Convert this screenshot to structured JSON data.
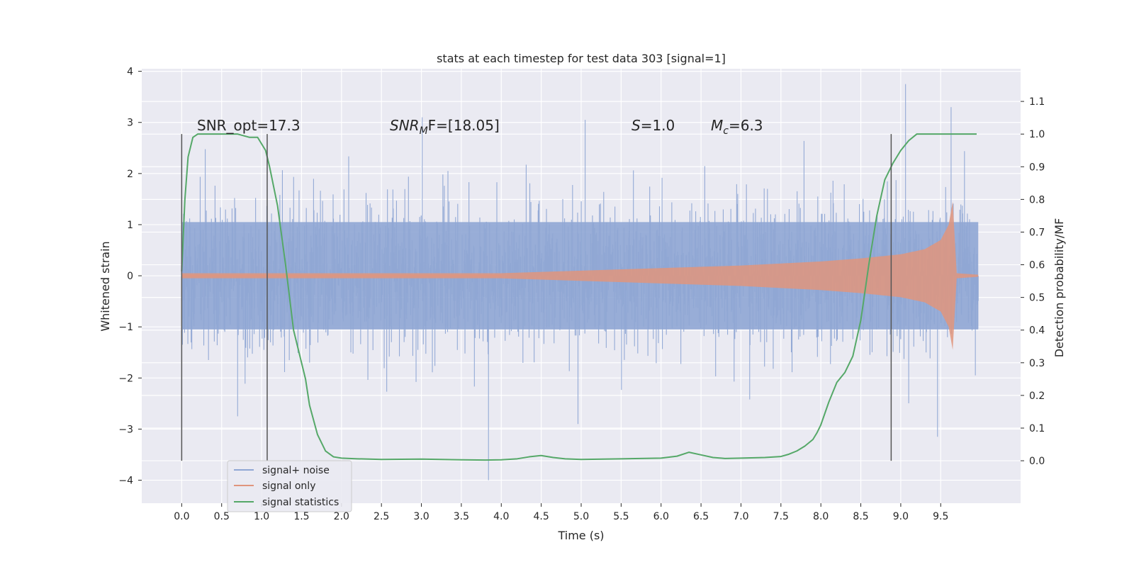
{
  "chart_data": {
    "type": "line",
    "title": "stats at each timestep for test data 303 [signal=1]",
    "xlabel": "Time (s)",
    "ylabel": "Whitened strain",
    "y2label": "Detection probability/MF",
    "xlim": [
      -0.5,
      10.5
    ],
    "ylim": [
      -4.45,
      4.05
    ],
    "y2lim": [
      -0.13,
      1.2
    ],
    "xticks": [
      "0.0",
      "0.5",
      "1.0",
      "1.5",
      "2.0",
      "2.5",
      "3.0",
      "3.5",
      "4.0",
      "4.5",
      "5.0",
      "5.5",
      "6.0",
      "6.5",
      "7.0",
      "7.5",
      "8.0",
      "8.5",
      "9.0",
      "9.5"
    ],
    "yticks": [
      "−4",
      "−3",
      "−2",
      "−1",
      "0",
      "1",
      "2",
      "3",
      "4"
    ],
    "y2ticks": [
      "0.0",
      "0.1",
      "0.2",
      "0.3",
      "0.4",
      "0.5",
      "0.6",
      "0.7",
      "0.8",
      "0.9",
      "1.0",
      "1.1"
    ],
    "grid": true,
    "legend_position": "lower-left",
    "annotations": {
      "snr_opt": "SNR_opt=17.3",
      "snr_mf_main": "SNR",
      "snr_mf_sub": "M",
      "snr_mf_tail": "F=[18.05]",
      "s_label": "S",
      "s_value": "=1.0",
      "mc_label": "M",
      "mc_sub": "c",
      "mc_value": "=6.3"
    },
    "vlines_x": [
      0.0,
      1.07,
      8.88
    ],
    "series": [
      {
        "name": "signal+ noise",
        "color": "#8fa6d4",
        "axis": "left",
        "time_range": [
          0.0,
          9.97
        ],
        "noise_sigma": 0.75,
        "notable_spikes": [
          {
            "x": 3.84,
            "y": -4.0
          },
          {
            "x": 9.06,
            "y": 3.75
          },
          {
            "x": 9.63,
            "y": 3.3
          },
          {
            "x": 5.05,
            "y": 3.05
          },
          {
            "x": 3.01,
            "y": 3.1
          },
          {
            "x": 9.46,
            "y": -3.15
          },
          {
            "x": 4.96,
            "y": -2.9
          },
          {
            "x": 0.7,
            "y": -2.75
          }
        ]
      },
      {
        "name": "signal only",
        "color": "#e0957d",
        "axis": "left",
        "chirp_start": 4.0,
        "merger_time": 9.65,
        "envelope_t": [
          0.0,
          4.0,
          5.0,
          6.0,
          7.0,
          8.0,
          8.5,
          9.0,
          9.3,
          9.5,
          9.6,
          9.65,
          9.7,
          9.97
        ],
        "envelope_amp": [
          0.05,
          0.05,
          0.1,
          0.15,
          0.2,
          0.28,
          0.34,
          0.42,
          0.52,
          0.7,
          1.0,
          1.45,
          0.05,
          0.02
        ]
      },
      {
        "name": "signal statistics",
        "color": "#55a868",
        "axis": "right",
        "x": [
          0.0,
          0.04,
          0.08,
          0.14,
          0.2,
          0.3,
          0.5,
          0.7,
          0.85,
          0.95,
          1.0,
          1.05,
          1.1,
          1.2,
          1.3,
          1.4,
          1.5,
          1.55,
          1.6,
          1.7,
          1.8,
          1.9,
          2.0,
          2.2,
          2.5,
          3.0,
          3.5,
          3.8,
          4.0,
          4.2,
          4.35,
          4.5,
          4.65,
          4.8,
          5.0,
          5.5,
          6.0,
          6.2,
          6.35,
          6.5,
          6.65,
          6.8,
          7.0,
          7.3,
          7.5,
          7.6,
          7.7,
          7.8,
          7.9,
          7.95,
          8.0,
          8.1,
          8.2,
          8.3,
          8.4,
          8.5,
          8.6,
          8.7,
          8.8,
          8.9,
          9.0,
          9.1,
          9.2,
          9.3,
          9.5,
          9.7,
          9.95
        ],
        "y": [
          0.58,
          0.8,
          0.93,
          0.99,
          1.0,
          1.0,
          1.0,
          1.0,
          0.99,
          0.99,
          0.97,
          0.95,
          0.9,
          0.78,
          0.6,
          0.4,
          0.3,
          0.25,
          0.17,
          0.08,
          0.03,
          0.012,
          0.008,
          0.006,
          0.004,
          0.005,
          0.003,
          0.002,
          0.003,
          0.006,
          0.012,
          0.016,
          0.01,
          0.006,
          0.004,
          0.006,
          0.008,
          0.014,
          0.026,
          0.018,
          0.01,
          0.007,
          0.008,
          0.01,
          0.013,
          0.02,
          0.03,
          0.045,
          0.065,
          0.085,
          0.11,
          0.18,
          0.24,
          0.27,
          0.32,
          0.43,
          0.6,
          0.75,
          0.86,
          0.91,
          0.95,
          0.98,
          1.0,
          1.0,
          1.0,
          1.0,
          1.0
        ]
      }
    ]
  }
}
